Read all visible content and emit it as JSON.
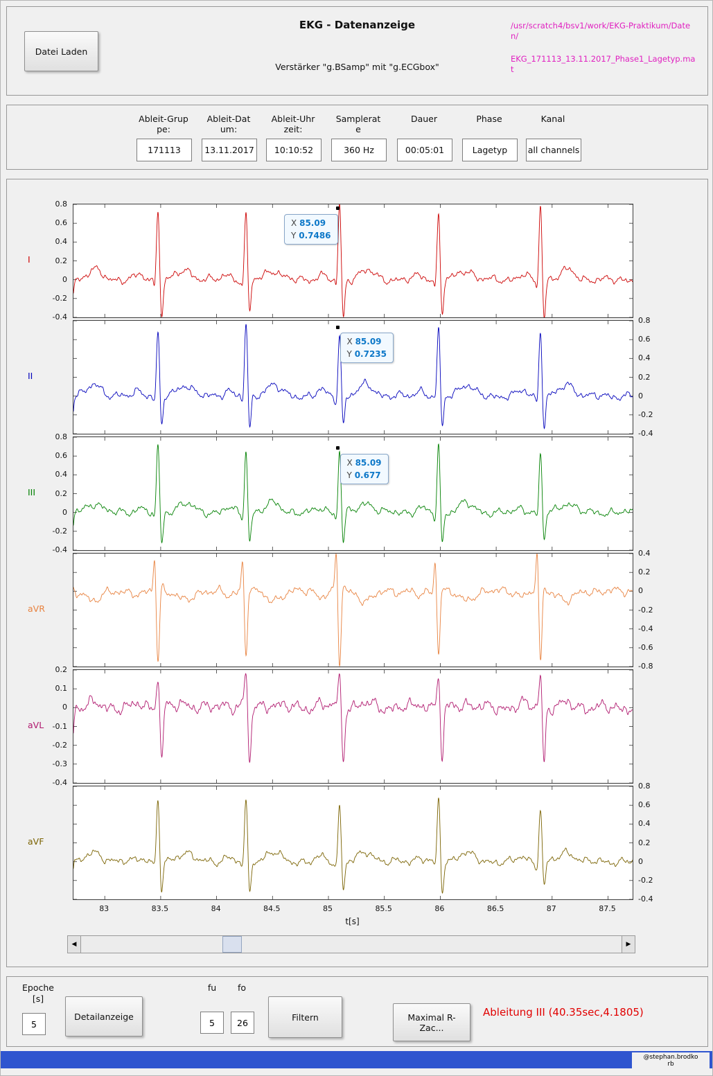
{
  "window": {
    "title": "EKG - Datenanzeige",
    "subtitle": "Verstärker \"g.BSamp\" mit \"g.ECGbox\"",
    "load_button": "Datei Laden",
    "path_line1": "/usr/scratch4/bsv1/work/EKG-Praktikum/Daten/",
    "path_line2": "EKG_171113_13.11.2017_Phase1_Lagetyp.mat",
    "path_color": "#e020c0"
  },
  "info": {
    "fields": [
      {
        "label": "Ableit-Grup\npe:",
        "value": "171113"
      },
      {
        "label": "Ableit-Dat\num:",
        "value": "13.11.2017"
      },
      {
        "label": "Ableit-Uhr\nzeit:",
        "value": "10:10:52"
      },
      {
        "label": "Samplerat\ne",
        "value": "360 Hz"
      },
      {
        "label": "Dauer",
        "value": "00:05:01"
      },
      {
        "label": "Phase",
        "value": "Lagetyp"
      },
      {
        "label": "Kanal",
        "value": "all channels"
      }
    ]
  },
  "chart_data": {
    "type": "line",
    "title": "",
    "xlabel": "t[s]",
    "xlim": [
      82.72,
      87.72
    ],
    "xticks": [
      83,
      83.5,
      84,
      84.5,
      85,
      85.5,
      86,
      86.5,
      87,
      87.5
    ],
    "beat_times": [
      82.67,
      83.476,
      84.263,
      85.1,
      85.985,
      86.896
    ],
    "legend": "off",
    "grid": "off",
    "series": [
      {
        "name": "I",
        "color": "#cc0000",
        "axis_side": "left",
        "ylim": [
          -0.4,
          0.8
        ],
        "yticks": [
          0.8,
          0.6,
          0.4,
          0.2,
          0,
          -0.2,
          -0.4
        ],
        "q": -0.1,
        "r": 0.75,
        "s": -0.4,
        "t_amp": 0.1,
        "p_amp": 0.05,
        "noise": 0.05,
        "tooltip": {
          "x": 85.09,
          "y": 0.7486,
          "x_label": "85.09",
          "y_label": "0.7486",
          "side": "left"
        }
      },
      {
        "name": "II",
        "color": "#0000bb",
        "axis_side": "right",
        "ylim": [
          -0.4,
          0.8
        ],
        "yticks": [
          0.8,
          0.6,
          0.4,
          0.2,
          0,
          -0.2,
          -0.4
        ],
        "q": -0.08,
        "r": 0.73,
        "s": -0.36,
        "t_amp": 0.12,
        "p_amp": 0.06,
        "noise": 0.05,
        "tooltip": {
          "x": 85.09,
          "y": 0.7235,
          "x_label": "85.09",
          "y_label": "0.7235",
          "side": "right"
        }
      },
      {
        "name": "III",
        "color": "#008000",
        "axis_side": "left",
        "ylim": [
          -0.4,
          0.8
        ],
        "yticks": [
          0.8,
          0.6,
          0.4,
          0.2,
          0,
          -0.2,
          -0.4
        ],
        "q": -0.08,
        "r": 0.68,
        "s": -0.34,
        "t_amp": 0.1,
        "p_amp": 0.05,
        "noise": 0.05,
        "tooltip": {
          "x": 85.09,
          "y": 0.677,
          "x_label": "85.09",
          "y_label": "0.677",
          "side": "right"
        }
      },
      {
        "name": "aVR",
        "color": "#e8823f",
        "axis_side": "right",
        "ylim": [
          -0.8,
          0.4
        ],
        "yticks": [
          0.4,
          0.2,
          0,
          -0.2,
          -0.4,
          -0.6,
          -0.8
        ],
        "q": 0.38,
        "r": -0.72,
        "s": 0.06,
        "t_amp": -0.1,
        "p_amp": -0.05,
        "noise": 0.055
      },
      {
        "name": "aVL",
        "color": "#b0186e",
        "axis_side": "left",
        "ylim": [
          -0.4,
          0.2
        ],
        "yticks": [
          0.2,
          0.1,
          0,
          -0.1,
          -0.2,
          -0.3,
          -0.4
        ],
        "q": 0.02,
        "r": 0.18,
        "s": -0.3,
        "t_amp": 0.02,
        "p_amp": 0.02,
        "noise": 0.04
      },
      {
        "name": "aVF",
        "color": "#7a6200",
        "axis_side": "right",
        "ylim": [
          -0.4,
          0.8
        ],
        "yticks": [
          0.8,
          0.6,
          0.4,
          0.2,
          0,
          -0.2,
          -0.4
        ],
        "q": -0.08,
        "r": 0.64,
        "s": -0.32,
        "t_amp": 0.1,
        "p_amp": 0.05,
        "noise": 0.05
      }
    ]
  },
  "scrollbar": {
    "left_arrow": "◀",
    "right_arrow": "▶",
    "thumb_position": 223
  },
  "controls": {
    "epoche_label": "Epoche\n[s]",
    "epoche_value": "5",
    "detail_button": "Detailanzeige",
    "fu_label": "fu",
    "fo_label": "fo",
    "fu_value": "5",
    "fo_value": "26",
    "filter_button": "Filtern",
    "rpeak_button": "Maximal R-Zac...",
    "status_text": "Ableitung III (40.35sec,4.1805)",
    "status_color": "#e10000"
  },
  "credit": "@stephan.brodko\nrb"
}
